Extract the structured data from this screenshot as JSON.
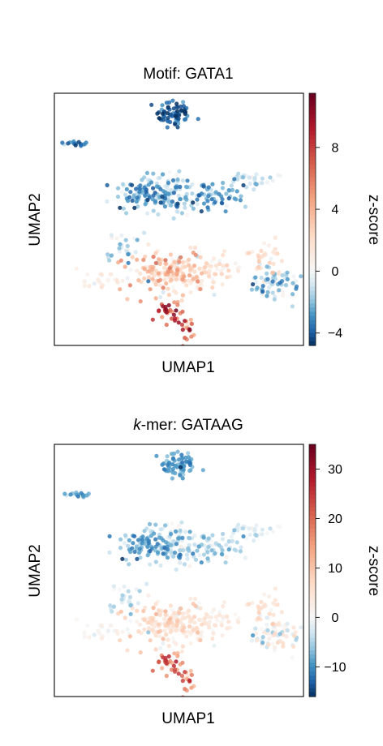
{
  "chart_data": [
    {
      "type": "scatter",
      "title": "Motif: GATA1",
      "title_prefix": "",
      "title_suffix": "Motif: GATA1",
      "xlabel": "UMAP1",
      "ylabel": "UMAP2",
      "colorbar": {
        "label": "z-score",
        "range": [
          -4.8,
          11.5
        ],
        "ticks": [
          -4,
          0,
          4,
          8
        ],
        "tick_labels": [
          "−4",
          "0",
          "4",
          "8"
        ],
        "colormap": [
          "#053061",
          "#2166ac",
          "#4393c3",
          "#92c5de",
          "#d1e5f0",
          "#f7f7f7",
          "#fddbc7",
          "#f4a582",
          "#d6604d",
          "#b2182b",
          "#67001f"
        ]
      },
      "xlim": [
        0,
        10
      ],
      "ylim": [
        0,
        10
      ],
      "clusters": [
        {
          "name": "top",
          "x": 4.8,
          "y": 9.2,
          "sx": 0.35,
          "sy": 0.3,
          "n": 70,
          "z_mean": -4.0,
          "z_sd": 1.0
        },
        {
          "name": "far-left",
          "x": 0.8,
          "y": 8.0,
          "sx": 0.35,
          "sy": 0.06,
          "n": 18,
          "z_mean": -3.2,
          "z_sd": 0.8
        },
        {
          "name": "upper-left",
          "x": 3.6,
          "y": 6.0,
          "sx": 0.6,
          "sy": 0.35,
          "n": 95,
          "z_mean": -2.2,
          "z_sd": 1.2
        },
        {
          "name": "upper-center",
          "x": 4.9,
          "y": 6.0,
          "sx": 0.45,
          "sy": 0.45,
          "n": 85,
          "z_mean": -2.0,
          "z_sd": 1.0
        },
        {
          "name": "upper-right",
          "x": 6.4,
          "y": 5.9,
          "sx": 0.6,
          "sy": 0.25,
          "n": 60,
          "z_mean": -2.4,
          "z_sd": 1.0
        },
        {
          "name": "upper-tail",
          "x": 8.0,
          "y": 6.6,
          "sx": 0.6,
          "sy": 0.15,
          "n": 28,
          "z_mean": -1.0,
          "z_sd": 0.8
        },
        {
          "name": "left-arm",
          "x": 2.7,
          "y": 4.0,
          "sx": 0.3,
          "sy": 0.35,
          "n": 25,
          "z_mean": -1.5,
          "z_sd": 1.0
        },
        {
          "name": "lower-left-tail",
          "x": 1.8,
          "y": 2.6,
          "sx": 0.6,
          "sy": 0.15,
          "n": 24,
          "z_mean": 0.8,
          "z_sd": 0.6
        },
        {
          "name": "lower-center",
          "x": 4.6,
          "y": 2.8,
          "sx": 0.8,
          "sy": 0.5,
          "n": 170,
          "z_mean": 2.6,
          "z_sd": 1.6
        },
        {
          "name": "lower-mid-right",
          "x": 6.3,
          "y": 3.1,
          "sx": 0.6,
          "sy": 0.35,
          "n": 55,
          "z_mean": 1.5,
          "z_sd": 1.0
        },
        {
          "name": "lower-right-tail",
          "x": 8.3,
          "y": 3.5,
          "sx": 0.5,
          "sy": 0.35,
          "n": 35,
          "z_mean": 1.8,
          "z_sd": 0.8
        },
        {
          "name": "right-blob",
          "x": 8.9,
          "y": 2.4,
          "sx": 0.6,
          "sy": 0.35,
          "n": 70,
          "z_mean": -1.3,
          "z_sd": 1.2
        },
        {
          "name": "lower-stalk",
          "x": 4.7,
          "y": 1.3,
          "sx": 0.35,
          "sy": 0.25,
          "n": 30,
          "z_mean": 8.0,
          "z_sd": 2.0
        },
        {
          "name": "right-leg",
          "x": 5.4,
          "y": 0.8,
          "sx": 0.12,
          "sy": 0.35,
          "n": 18,
          "z_mean": 7.0,
          "z_sd": 2.5
        }
      ]
    },
    {
      "type": "scatter",
      "title": "k-mer: GATAAG",
      "title_prefix": "k",
      "title_suffix": "-mer: GATAAG",
      "xlabel": "UMAP1",
      "ylabel": "UMAP2",
      "colorbar": {
        "label": "z-score",
        "range": [
          -16,
          35
        ],
        "ticks": [
          -10,
          0,
          10,
          20,
          30
        ],
        "tick_labels": [
          "−10",
          "0",
          "10",
          "20",
          "30"
        ],
        "colormap": [
          "#053061",
          "#2166ac",
          "#4393c3",
          "#92c5de",
          "#d1e5f0",
          "#f7f7f7",
          "#fddbc7",
          "#f4a582",
          "#d6604d",
          "#b2182b",
          "#67001f"
        ]
      },
      "xlim": [
        0,
        10
      ],
      "ylim": [
        0,
        10
      ],
      "clusters": [
        {
          "name": "top",
          "x": 5.0,
          "y": 9.2,
          "sx": 0.35,
          "sy": 0.3,
          "n": 70,
          "z_mean": -9.0,
          "z_sd": 2.0
        },
        {
          "name": "far-left",
          "x": 0.9,
          "y": 8.0,
          "sx": 0.35,
          "sy": 0.06,
          "n": 18,
          "z_mean": -8.0,
          "z_sd": 2.0
        },
        {
          "name": "upper-left",
          "x": 3.7,
          "y": 6.0,
          "sx": 0.6,
          "sy": 0.35,
          "n": 95,
          "z_mean": -7.0,
          "z_sd": 3.0
        },
        {
          "name": "upper-center",
          "x": 5.0,
          "y": 6.0,
          "sx": 0.45,
          "sy": 0.45,
          "n": 85,
          "z_mean": -5.0,
          "z_sd": 3.0
        },
        {
          "name": "upper-right",
          "x": 6.4,
          "y": 5.9,
          "sx": 0.6,
          "sy": 0.25,
          "n": 60,
          "z_mean": -4.0,
          "z_sd": 3.0
        },
        {
          "name": "upper-tail",
          "x": 8.0,
          "y": 6.6,
          "sx": 0.6,
          "sy": 0.15,
          "n": 28,
          "z_mean": -2.0,
          "z_sd": 2.0
        },
        {
          "name": "left-arm",
          "x": 2.8,
          "y": 4.0,
          "sx": 0.3,
          "sy": 0.35,
          "n": 25,
          "z_mean": -4.0,
          "z_sd": 2.0
        },
        {
          "name": "lower-left-tail",
          "x": 1.8,
          "y": 2.6,
          "sx": 0.6,
          "sy": 0.15,
          "n": 24,
          "z_mean": 1.0,
          "z_sd": 1.5
        },
        {
          "name": "lower-center",
          "x": 4.6,
          "y": 2.8,
          "sx": 0.8,
          "sy": 0.5,
          "n": 170,
          "z_mean": 5.0,
          "z_sd": 3.0
        },
        {
          "name": "lower-mid-right",
          "x": 6.3,
          "y": 3.1,
          "sx": 0.6,
          "sy": 0.35,
          "n": 55,
          "z_mean": 3.0,
          "z_sd": 2.0
        },
        {
          "name": "lower-right-tail",
          "x": 8.3,
          "y": 3.5,
          "sx": 0.5,
          "sy": 0.35,
          "n": 35,
          "z_mean": 5.0,
          "z_sd": 2.0
        },
        {
          "name": "right-blob",
          "x": 8.9,
          "y": 2.4,
          "sx": 0.6,
          "sy": 0.35,
          "n": 70,
          "z_mean": 1.0,
          "z_sd": 4.0
        },
        {
          "name": "lower-stalk",
          "x": 4.7,
          "y": 1.3,
          "sx": 0.35,
          "sy": 0.25,
          "n": 30,
          "z_mean": 20.0,
          "z_sd": 5.0
        },
        {
          "name": "right-leg",
          "x": 5.4,
          "y": 0.8,
          "sx": 0.12,
          "sy": 0.35,
          "n": 18,
          "z_mean": 18.0,
          "z_sd": 6.0
        }
      ]
    }
  ]
}
